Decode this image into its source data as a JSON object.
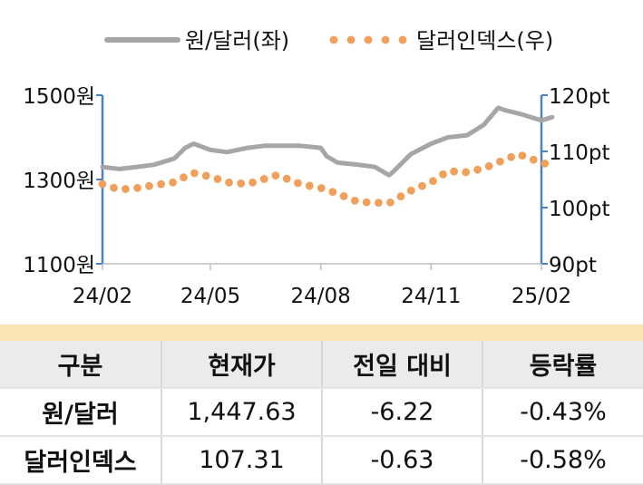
{
  "legend": {
    "series1": "원/달러(좌)",
    "series2": "달러인덱스(우)"
  },
  "colors": {
    "krw": "#a6a6a6",
    "dxy": "#f0a05a",
    "axis": "#4f81bd",
    "table_header_bg": "#ebebeb",
    "band": "#fbe4b3"
  },
  "chart_data": {
    "type": "line",
    "x_ticks": [
      "24/02",
      "24/05",
      "24/08",
      "24/11",
      "25/02"
    ],
    "y_left": {
      "ticks": [
        "1500원",
        "1300원",
        "1100원"
      ],
      "range": [
        1100,
        1500
      ]
    },
    "y_right": {
      "ticks": [
        "120pt",
        "110pt",
        "100pt",
        "90pt"
      ],
      "range": [
        90,
        120
      ]
    },
    "series": [
      {
        "name": "원/달러(좌)",
        "axis": "left",
        "style": "solid-line",
        "x": [
          "2024-02-01",
          "2024-02-15",
          "2024-03-01",
          "2024-03-15",
          "2024-04-01",
          "2024-04-10",
          "2024-04-17",
          "2024-05-01",
          "2024-05-15",
          "2024-06-01",
          "2024-06-15",
          "2024-07-01",
          "2024-07-15",
          "2024-08-01",
          "2024-08-06",
          "2024-08-15",
          "2024-09-01",
          "2024-09-15",
          "2024-09-27",
          "2024-10-01",
          "2024-10-15",
          "2024-11-01",
          "2024-11-15",
          "2024-12-01",
          "2024-12-15",
          "2024-12-27",
          "2025-01-01",
          "2025-01-15",
          "2025-02-01",
          "2025-02-10"
        ],
        "values": [
          1330,
          1325,
          1330,
          1335,
          1350,
          1375,
          1385,
          1370,
          1365,
          1375,
          1380,
          1380,
          1380,
          1375,
          1355,
          1340,
          1335,
          1330,
          1310,
          1320,
          1360,
          1385,
          1400,
          1405,
          1430,
          1470,
          1465,
          1455,
          1440,
          1448
        ]
      },
      {
        "name": "달러인덱스(우)",
        "axis": "right",
        "style": "dotted",
        "x": [
          "2024-02-01",
          "2024-02-15",
          "2024-03-01",
          "2024-03-15",
          "2024-04-01",
          "2024-04-16",
          "2024-05-01",
          "2024-05-15",
          "2024-06-01",
          "2024-06-26",
          "2024-07-15",
          "2024-08-01",
          "2024-08-15",
          "2024-09-01",
          "2024-09-27",
          "2024-10-15",
          "2024-11-01",
          "2024-11-15",
          "2024-12-01",
          "2024-12-15",
          "2025-01-01",
          "2025-01-13",
          "2025-02-01",
          "2025-02-10"
        ],
        "values": [
          104.2,
          103.2,
          103.5,
          104.0,
          104.5,
          106.2,
          105.5,
          104.5,
          104.2,
          105.8,
          104.2,
          103.5,
          102.5,
          101.0,
          100.8,
          103.0,
          104.5,
          106.5,
          106.3,
          107.0,
          108.5,
          109.5,
          108.0,
          107.5
        ]
      }
    ]
  },
  "table": {
    "headers": [
      "구분",
      "현재가",
      "전일 대비",
      "등락률"
    ],
    "rows": [
      [
        "원/달러",
        "1,447.63",
        "-6.22",
        "-0.43%"
      ],
      [
        "달러인덱스",
        "107.31",
        "-0.63",
        "-0.58%"
      ]
    ]
  }
}
